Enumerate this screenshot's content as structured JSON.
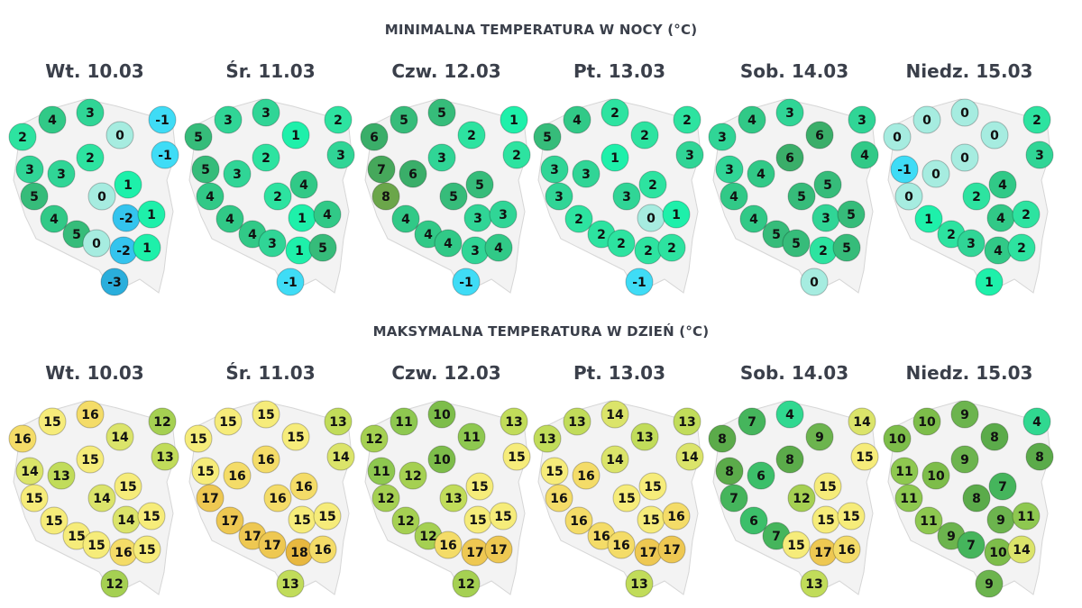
{
  "sections": [
    {
      "title": "MINIMALNA TEMPERATURA W NOCY (°C)",
      "days": [
        {
          "label": "Wt. 10.03",
          "values": [
            4,
            3,
            0,
            -1,
            2,
            -1,
            2,
            3,
            3,
            1,
            0,
            5,
            -2,
            1,
            4,
            5,
            0,
            -2,
            1,
            -3
          ]
        },
        {
          "label": "Śr. 11.03",
          "values": [
            3,
            3,
            1,
            2,
            5,
            3,
            2,
            5,
            3,
            4,
            2,
            4,
            1,
            4,
            4,
            4,
            3,
            1,
            5,
            -1
          ]
        },
        {
          "label": "Czw. 12.03",
          "values": [
            5,
            5,
            2,
            1,
            6,
            2,
            3,
            7,
            6,
            5,
            5,
            8,
            3,
            3,
            4,
            4,
            4,
            3,
            4,
            -1
          ]
        },
        {
          "label": "Pt. 13.03",
          "values": [
            4,
            2,
            2,
            2,
            5,
            3,
            1,
            3,
            3,
            2,
            3,
            3,
            0,
            1,
            2,
            2,
            2,
            2,
            2,
            -1
          ]
        },
        {
          "label": "Sob. 14.03",
          "values": [
            4,
            3,
            6,
            3,
            3,
            4,
            6,
            3,
            4,
            5,
            5,
            4,
            3,
            5,
            4,
            5,
            5,
            2,
            5,
            0
          ]
        },
        {
          "label": "Niedz. 15.03",
          "values": [
            0,
            0,
            0,
            2,
            0,
            3,
            0,
            -1,
            0,
            4,
            2,
            0,
            4,
            2,
            1,
            2,
            3,
            4,
            2,
            1
          ]
        }
      ],
      "color_scale": {
        "-3": "#2aaedc",
        "-2": "#34c4ee",
        "-1": "#3fdcf6",
        "0": "#a6ece0",
        "1": "#1ef0aa",
        "2": "#2de3a0",
        "3": "#30d596",
        "4": "#31c987",
        "5": "#36bc7a",
        "6": "#3aae69",
        "7": "#46a85b",
        "8": "#6ba64a"
      }
    },
    {
      "title": "MAKSYMALNA TEMPERATURA W DZIEŃ (°C)",
      "days": [
        {
          "label": "Wt. 10.03",
          "values": [
            15,
            16,
            14,
            12,
            16,
            13,
            15,
            14,
            13,
            15,
            14,
            15,
            14,
            15,
            15,
            15,
            15,
            16,
            15,
            12
          ]
        },
        {
          "label": "Śr. 11.03",
          "values": [
            15,
            15,
            15,
            13,
            15,
            14,
            16,
            15,
            16,
            16,
            16,
            17,
            15,
            15,
            17,
            17,
            17,
            18,
            16,
            13
          ]
        },
        {
          "label": "Czw. 12.03",
          "values": [
            11,
            10,
            11,
            13,
            12,
            15,
            10,
            11,
            12,
            15,
            13,
            12,
            15,
            15,
            12,
            12,
            16,
            17,
            17,
            12
          ]
        },
        {
          "label": "Pt. 13.03",
          "values": [
            13,
            14,
            13,
            13,
            13,
            14,
            14,
            15,
            16,
            15,
            15,
            16,
            15,
            16,
            16,
            16,
            16,
            17,
            17,
            13
          ]
        },
        {
          "label": "Sob. 14.03",
          "values": [
            7,
            4,
            9,
            14,
            8,
            15,
            8,
            8,
            6,
            15,
            12,
            7,
            15,
            15,
            6,
            7,
            15,
            17,
            16,
            13
          ]
        },
        {
          "label": "Niedz. 15.03",
          "values": [
            10,
            9,
            8,
            4,
            10,
            8,
            9,
            11,
            10,
            7,
            8,
            11,
            9,
            11,
            11,
            9,
            7,
            10,
            14,
            9
          ]
        }
      ],
      "color_scale": {
        "4": "#30d890",
        "6": "#3cbf6a",
        "7": "#45b55c",
        "8": "#5bab4a",
        "9": "#6cb44e",
        "10": "#7dbd4a",
        "11": "#8ec850",
        "12": "#a5d052",
        "13": "#c1dc5a",
        "14": "#dbe46a",
        "15": "#f6ec7a",
        "16": "#f4dc68",
        "17": "#eec852",
        "18": "#e8b840"
      }
    }
  ]
}
